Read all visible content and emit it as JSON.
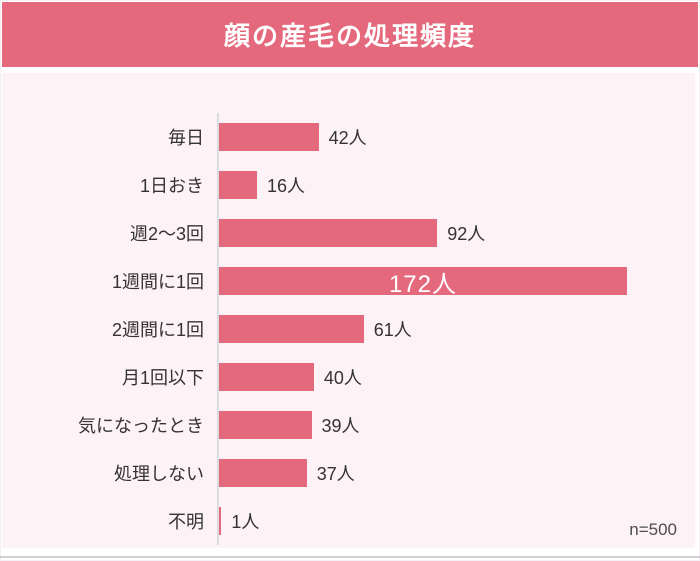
{
  "header": {
    "title": "顔の産毛の処理頻度"
  },
  "chart_data": {
    "type": "bar",
    "orientation": "horizontal",
    "title": "顔の産毛の処理頻度",
    "categories": [
      "毎日",
      "1日おき",
      "週2～3回",
      "1週間に1回",
      "2週間に1回",
      "月1回以下",
      "気になったとき",
      "処理しない",
      "不明"
    ],
    "values": [
      42,
      16,
      92,
      172,
      61,
      40,
      39,
      37,
      1
    ],
    "unit": "人",
    "sample_size_label": "n=500",
    "xlim": [
      0,
      180
    ],
    "grid": "off",
    "legend": "none",
    "colors": {
      "banner": "#e5697d",
      "bar": "#e5697d",
      "plot_background": "#fdf2f5",
      "axis_line": "#dcdbde",
      "category_text": "#333333",
      "value_text": "#333333",
      "inside_value_text": "#ffffff",
      "title_text": "#ffffff"
    }
  }
}
